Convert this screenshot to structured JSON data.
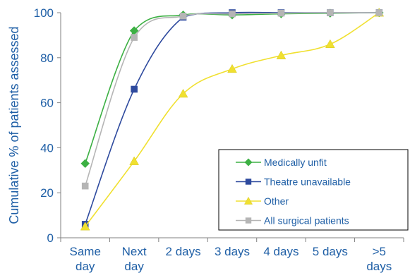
{
  "chart_data": {
    "type": "line",
    "title": "",
    "xlabel": "",
    "ylabel": "Cumulative % of patients assessed",
    "ylim": [
      0,
      100
    ],
    "yticks": [
      0,
      20,
      40,
      60,
      80,
      100
    ],
    "grid": false,
    "legend_position": "bottom-right",
    "categories": [
      [
        "Same",
        "day"
      ],
      [
        "Next",
        "day"
      ],
      [
        "2 days"
      ],
      [
        "3 days"
      ],
      [
        "4 days"
      ],
      [
        "5 days"
      ],
      [
        ">5",
        "days"
      ]
    ],
    "series": [
      {
        "name": "Medically unfit",
        "color": "#3cb043",
        "marker": "diamond",
        "values": [
          33,
          92,
          99,
          99,
          99.5,
          99.8,
          100
        ]
      },
      {
        "name": "Theatre unavailable",
        "color": "#2e4a9e",
        "marker": "square",
        "values": [
          6,
          66,
          98,
          100,
          100,
          100,
          100
        ]
      },
      {
        "name": "Other",
        "color": "#f0e030",
        "marker": "triangle",
        "values": [
          5,
          34,
          64,
          75,
          81,
          86,
          100
        ]
      },
      {
        "name": "All surgical patients",
        "color": "#b5b5b5",
        "marker": "square",
        "values": [
          23,
          89,
          98.5,
          99.5,
          99.8,
          100,
          100
        ]
      }
    ]
  }
}
